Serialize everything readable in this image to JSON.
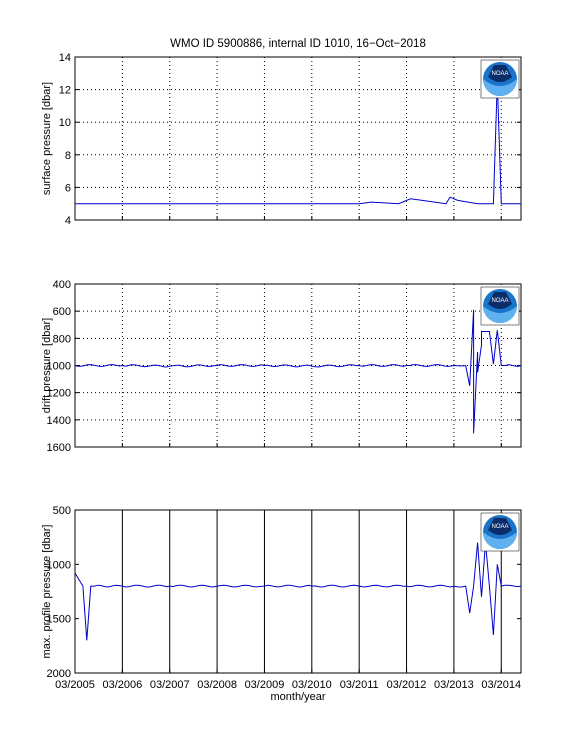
{
  "title": "WMO ID 5900886, internal ID 1010, 16−Oct−2018",
  "x_axis": {
    "label": "month/year",
    "tick_labels": [
      "03/2005",
      "03/2006",
      "03/2007",
      "03/2008",
      "03/2009",
      "03/2010",
      "03/2011",
      "03/2012",
      "03/2013",
      "03/2014"
    ],
    "range": [
      "2005-03",
      "2014-08"
    ]
  },
  "logo": {
    "name": "noaa-logo",
    "text": "NOAA"
  },
  "colors": {
    "series": "#0000cc",
    "grid": "#000000",
    "background": "#ffffff"
  },
  "chart_data": [
    {
      "type": "line",
      "id": "surface",
      "ylabel": "surface pressure [dbar]",
      "ylim": [
        4,
        14
      ],
      "y_reversed": false,
      "yticks": [
        4,
        6,
        8,
        10,
        12,
        14
      ],
      "grid": "dotted",
      "x": [
        "2005-03",
        "2006-03",
        "2007-03",
        "2008-03",
        "2009-03",
        "2010-03",
        "2011-03",
        "2011-06",
        "2012-01",
        "2012-04",
        "2012-07",
        "2013-01",
        "2013-02",
        "2013-04",
        "2013-09",
        "2013-10",
        "2014-01",
        "2014-02",
        "2014-03",
        "2014-04",
        "2014-08"
      ],
      "values": [
        5,
        5,
        5,
        5,
        5,
        5,
        5,
        5.1,
        5,
        5.3,
        5.2,
        5,
        5.4,
        5.2,
        5,
        5,
        5,
        12.5,
        5,
        5,
        5
      ]
    },
    {
      "type": "line",
      "id": "drift",
      "ylabel": "drift pressure [dbar]",
      "ylim": [
        400,
        1600
      ],
      "y_reversed": true,
      "yticks": [
        400,
        600,
        800,
        1000,
        1200,
        1400,
        1600
      ],
      "grid": "dotted",
      "x": [
        "2005-03",
        "2006-03",
        "2007-03",
        "2008-03",
        "2009-03",
        "2010-03",
        "2011-03",
        "2012-03",
        "2013-03",
        "2013-06",
        "2013-07",
        "2013-08",
        "2013-08",
        "2013-09",
        "2013-09",
        "2013-10",
        "2013-10",
        "2013-11",
        "2013-12",
        "2014-01",
        "2014-02",
        "2014-03",
        "2014-04",
        "2014-08"
      ],
      "values": [
        1000,
        1000,
        1005,
        1000,
        1000,
        1005,
        1000,
        1000,
        1000,
        1000,
        1150,
        590,
        1500,
        900,
        1050,
        850,
        750,
        750,
        750,
        990,
        740,
        1000,
        1000,
        1000
      ]
    },
    {
      "type": "line",
      "id": "max_profile",
      "ylabel": "max. profile pressure [dbar]",
      "ylim": [
        500,
        2000
      ],
      "y_reversed": true,
      "yticks": [
        500,
        1000,
        1500,
        2000
      ],
      "grid": "solid-vertical",
      "x": [
        "2005-03",
        "2005-05",
        "2005-06",
        "2005-07",
        "2005-08",
        "2006-03",
        "2007-03",
        "2008-03",
        "2009-03",
        "2010-03",
        "2011-03",
        "2012-03",
        "2013-03",
        "2013-06",
        "2013-07",
        "2013-08",
        "2013-09",
        "2013-10",
        "2013-11",
        "2013-12",
        "2014-01",
        "2014-02",
        "2014-03",
        "2014-08"
      ],
      "values": [
        1080,
        1200,
        1700,
        1200,
        1200,
        1200,
        1200,
        1200,
        1200,
        1200,
        1200,
        1200,
        1200,
        1200,
        1450,
        1200,
        800,
        1300,
        800,
        1200,
        1650,
        1000,
        1200,
        1200
      ]
    }
  ]
}
